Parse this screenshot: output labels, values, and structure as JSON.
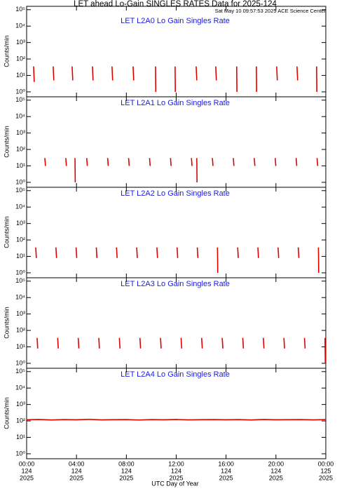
{
  "chart_data": [
    {
      "type": "line",
      "title": "LET ahead Lo-Gain SINGLES RATES Data for 2025-124",
      "subtitle": "Sat May 10 09:57:53 2025 ACE Science Center",
      "panel_title": "LET L2A0 Lo Gain Singles Rate",
      "ylabel": "Counts/min",
      "log_y": true,
      "ylim": [
        0.5,
        160000
      ],
      "yticks": [
        {
          "value": 1,
          "label": "10⁰"
        },
        {
          "value": 10,
          "label": "10¹"
        },
        {
          "value": 100,
          "label": "10²"
        },
        {
          "value": 1000,
          "label": "10³"
        },
        {
          "value": 10000,
          "label": "10⁴"
        },
        {
          "value": 100000,
          "label": "10⁵"
        }
      ],
      "xlim": [
        0,
        24
      ],
      "xticks": [
        0,
        4,
        8,
        12,
        16,
        20,
        24
      ],
      "x": [
        0.56,
        0.61,
        0.61,
        2.13,
        2.18,
        2.18,
        3.65,
        3.7,
        3.7,
        5.28,
        5.33,
        5.33,
        6.85,
        6.9,
        6.9,
        8.54,
        8.59,
        8.59,
        10.34,
        10.36,
        10.36,
        11.91,
        11.93,
        11.93,
        13.6,
        13.65,
        13.65,
        15.17,
        15.22,
        15.22,
        16.85,
        16.87,
        16.87,
        18.43,
        18.45,
        18.45,
        20.06,
        20.11,
        20.11,
        21.69,
        21.74,
        21.74,
        23.26,
        23.28,
        23.28
      ],
      "series": [
        {
          "color": "#e00000",
          "values": [
            35,
            4,
            null,
            35,
            5,
            null,
            35,
            5,
            null,
            35,
            5,
            null,
            35,
            5,
            null,
            35,
            5,
            null,
            35,
            1,
            null,
            35,
            1,
            null,
            35,
            5,
            null,
            35,
            5,
            null,
            35,
            1,
            null,
            35,
            1,
            null,
            35,
            5,
            null,
            35,
            5,
            null,
            35,
            1,
            null
          ]
        }
      ]
    },
    {
      "type": "line",
      "panel_title": "LET L2A1 Lo Gain Singles Rate",
      "ylabel": "Counts/min",
      "log_y": true,
      "ylim": [
        0.5,
        160000
      ],
      "yticks": [
        {
          "value": 1,
          "label": "10⁰"
        },
        {
          "value": 10,
          "label": "10¹"
        },
        {
          "value": 100,
          "label": "10²"
        },
        {
          "value": 1000,
          "label": "10³"
        },
        {
          "value": 10000,
          "label": "10⁴"
        },
        {
          "value": 100000,
          "label": "10⁵"
        }
      ],
      "xlim": [
        0,
        24
      ],
      "xticks": [
        0,
        4,
        8,
        12,
        16,
        20,
        24
      ],
      "x": [
        1.46,
        1.51,
        1.51,
        3.14,
        3.19,
        3.19,
        3.88,
        3.9,
        3.9,
        4.82,
        4.87,
        4.87,
        6.5,
        6.55,
        6.55,
        8.18,
        8.23,
        8.23,
        9.86,
        9.91,
        9.91,
        11.54,
        11.59,
        11.59,
        13.22,
        13.27,
        13.27,
        13.65,
        13.67,
        13.67,
        14.9,
        14.95,
        14.95,
        16.58,
        16.63,
        16.63,
        18.26,
        18.31,
        18.31,
        19.94,
        19.99,
        19.99,
        21.62,
        21.67,
        21.67,
        23.3,
        23.35,
        23.35
      ],
      "series": [
        {
          "color": "#e00000",
          "values": [
            30,
            10,
            null,
            30,
            10,
            null,
            30,
            1,
            null,
            30,
            10,
            null,
            30,
            10,
            null,
            30,
            10,
            null,
            30,
            10,
            null,
            30,
            10,
            null,
            30,
            10,
            null,
            30,
            1,
            null,
            30,
            10,
            null,
            30,
            10,
            null,
            30,
            10,
            null,
            30,
            10,
            null,
            30,
            10,
            null,
            30,
            10,
            null
          ]
        }
      ]
    },
    {
      "type": "line",
      "panel_title": "LET L2A2 Lo Gain Singles Rate",
      "ylabel": "Counts/min",
      "log_y": true,
      "ylim": [
        0.5,
        160000
      ],
      "yticks": [
        {
          "value": 1,
          "label": "10⁰"
        },
        {
          "value": 10,
          "label": "10¹"
        },
        {
          "value": 100,
          "label": "10²"
        },
        {
          "value": 1000,
          "label": "10³"
        },
        {
          "value": 10000,
          "label": "10⁴"
        },
        {
          "value": 100000,
          "label": "10⁵"
        }
      ],
      "xlim": [
        0,
        24
      ],
      "xticks": [
        0,
        4,
        8,
        12,
        16,
        20,
        24
      ],
      "x": [
        0.73,
        0.78,
        0.78,
        2.35,
        2.4,
        2.4,
        3.97,
        4.02,
        4.02,
        5.59,
        5.64,
        5.64,
        7.21,
        7.26,
        7.26,
        8.83,
        8.88,
        8.88,
        10.45,
        10.5,
        10.5,
        12.07,
        12.12,
        12.12,
        13.69,
        13.74,
        13.74,
        15.31,
        15.33,
        15.33,
        16.93,
        16.98,
        16.98,
        18.55,
        18.6,
        18.6,
        20.17,
        20.22,
        20.22,
        21.79,
        21.84,
        21.84,
        23.41,
        23.43,
        23.43
      ],
      "series": [
        {
          "color": "#e00000",
          "values": [
            35,
            8,
            null,
            35,
            8,
            null,
            35,
            8,
            null,
            35,
            8,
            null,
            35,
            8,
            null,
            35,
            8,
            null,
            35,
            8,
            null,
            35,
            8,
            null,
            35,
            8,
            null,
            35,
            1,
            null,
            35,
            8,
            null,
            35,
            8,
            null,
            35,
            8,
            null,
            35,
            8,
            null,
            35,
            1,
            null
          ]
        }
      ]
    },
    {
      "type": "line",
      "panel_title": "LET L2A3 Lo Gain Singles Rate",
      "ylabel": "Counts/min",
      "log_y": true,
      "ylim": [
        0.5,
        160000
      ],
      "yticks": [
        {
          "value": 1,
          "label": "10⁰"
        },
        {
          "value": 10,
          "label": "10¹"
        },
        {
          "value": 100,
          "label": "10²"
        },
        {
          "value": 1000,
          "label": "10³"
        },
        {
          "value": 10000,
          "label": "10⁴"
        },
        {
          "value": 100000,
          "label": "10⁵"
        }
      ],
      "xlim": [
        0,
        24
      ],
      "xticks": [
        0,
        4,
        8,
        12,
        16,
        20,
        24
      ],
      "x": [
        0.84,
        0.89,
        0.89,
        2.49,
        2.54,
        2.54,
        4.14,
        4.19,
        4.19,
        5.79,
        5.84,
        5.84,
        7.44,
        7.49,
        7.49,
        9.09,
        9.14,
        9.14,
        10.74,
        10.79,
        10.79,
        12.39,
        12.44,
        12.44,
        14.04,
        14.09,
        14.09,
        15.69,
        15.74,
        15.74,
        17.34,
        17.39,
        17.39,
        18.99,
        19.04,
        19.04,
        20.64,
        20.69,
        20.69,
        22.29,
        22.34,
        22.34,
        23.94,
        23.96,
        23.96
      ],
      "series": [
        {
          "color": "#e00000",
          "values": [
            35,
            8,
            null,
            35,
            8,
            null,
            35,
            8,
            null,
            35,
            8,
            null,
            35,
            8,
            null,
            35,
            8,
            null,
            35,
            8,
            null,
            35,
            8,
            null,
            35,
            8,
            null,
            35,
            8,
            null,
            35,
            8,
            null,
            35,
            8,
            null,
            35,
            8,
            null,
            35,
            8,
            null,
            35,
            1,
            null
          ]
        }
      ]
    },
    {
      "type": "line",
      "panel_title": "LET L2A4 Lo Gain Singles Rate",
      "ylabel": "Counts/min",
      "log_y": true,
      "xlabel": "UTC Day of Year",
      "ylim": [
        0.5,
        160000
      ],
      "yticks": [
        {
          "value": 1,
          "label": "10⁰"
        },
        {
          "value": 10,
          "label": "10¹"
        },
        {
          "value": 100,
          "label": "10²"
        },
        {
          "value": 1000,
          "label": "10³"
        },
        {
          "value": 10000,
          "label": "10⁴"
        },
        {
          "value": 100000,
          "label": "10⁵"
        }
      ],
      "xlim": [
        0,
        24
      ],
      "xticks": [
        {
          "value": 0,
          "label": [
            "00:00",
            "124",
            "2025"
          ]
        },
        {
          "value": 4,
          "label": [
            "04:00",
            "124",
            "2025"
          ]
        },
        {
          "value": 8,
          "label": [
            "08:00",
            "124",
            "2025"
          ]
        },
        {
          "value": 12,
          "label": [
            "12:00",
            "124",
            "2025"
          ]
        },
        {
          "value": 16,
          "label": [
            "16:00",
            "124",
            "2025"
          ]
        },
        {
          "value": 20,
          "label": [
            "20:00",
            "124",
            "2025"
          ]
        },
        {
          "value": 24,
          "label": [
            "00:00",
            "125",
            "2025"
          ]
        }
      ],
      "x": [
        0,
        1,
        2,
        3,
        4,
        5,
        6,
        7,
        8,
        9,
        10,
        11,
        12,
        13,
        14,
        15,
        16,
        17,
        18,
        19,
        20,
        21,
        22,
        23,
        24
      ],
      "series": [
        {
          "color": "#e00000",
          "values": [
            118,
            122,
            115,
            120,
            117,
            123,
            116,
            119,
            121,
            114,
            120,
            118,
            122,
            116,
            119,
            121,
            117,
            120,
            115,
            122,
            118,
            119,
            121,
            116,
            120
          ]
        }
      ]
    }
  ]
}
